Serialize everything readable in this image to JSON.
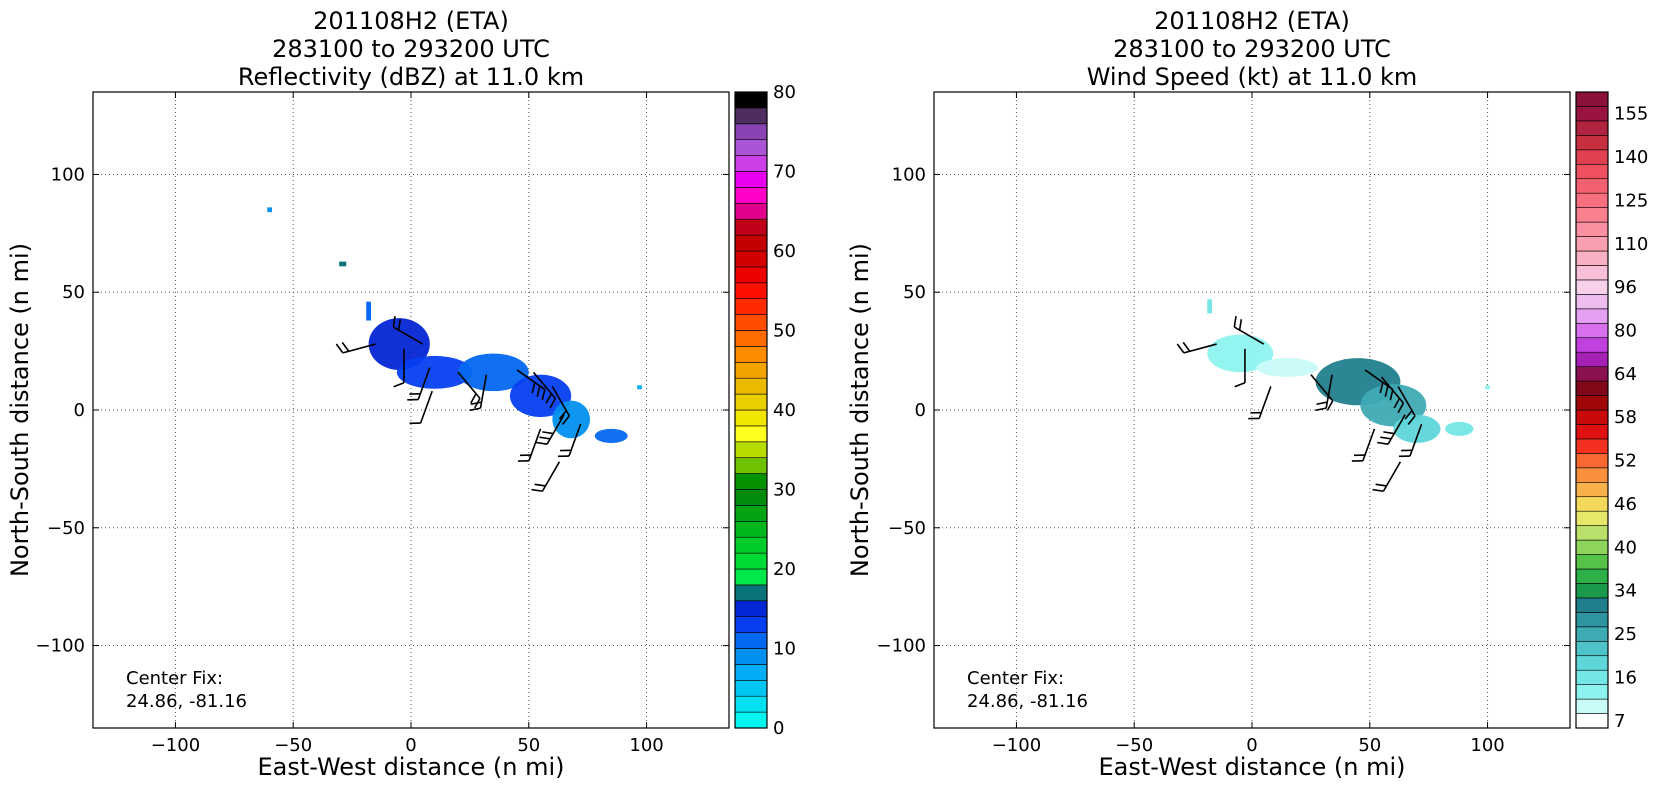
{
  "chart_data": [
    {
      "type": "heatmap",
      "title": [
        "201108H2 (ETA)",
        "283100 to 293200 UTC",
        "Reflectivity (dBZ) at 11.0 km"
      ],
      "xlabel": "East-West distance (n mi)",
      "ylabel": "North-South distance (n mi)",
      "xlim": [
        -135,
        135
      ],
      "ylim": [
        -135,
        135
      ],
      "xticks": [
        -100,
        -50,
        0,
        50,
        100
      ],
      "yticks": [
        -100,
        -50,
        0,
        50,
        100
      ],
      "grid": true,
      "annotation": [
        "Center Fix:",
        "24.86, -81.16"
      ],
      "colorbar": {
        "min": 0,
        "max": 80,
        "tick_labels": [
          "0",
          "10",
          "20",
          "30",
          "40",
          "50",
          "60",
          "70",
          "80"
        ],
        "colors": [
          "#00f5ef",
          "#00e1f0",
          "#00c6f3",
          "#01aef5",
          "#0190f0",
          "#0468f0",
          "#063ff0",
          "#0426d4",
          "#08747a",
          "#00e84a",
          "#00da35",
          "#00cc2a",
          "#00b81e",
          "#03a414",
          "#028c0b",
          "#059100",
          "#6ec200",
          "#b6dc00",
          "#ffff1f",
          "#f0e600",
          "#e8cf00",
          "#eab900",
          "#f2a300",
          "#ff8c00",
          "#ff6b00",
          "#ff4c00",
          "#ff2a00",
          "#ff0f00",
          "#ee0000",
          "#d30000",
          "#c40000",
          "#c0001a",
          "#e0008c",
          "#ff00c8",
          "#ea00f0",
          "#cc3ee6",
          "#aa54d6",
          "#8a43b2",
          "#4e2e60",
          "#000000"
        ]
      },
      "storm_blobs": [
        {
          "x": -5,
          "y": 28,
          "w": 26,
          "h": 22,
          "level": "#0426d4"
        },
        {
          "x": 10,
          "y": 16,
          "w": 32,
          "h": 14,
          "level": "#063ff0"
        },
        {
          "x": 35,
          "y": 16,
          "w": 30,
          "h": 16,
          "level": "#0468f0"
        },
        {
          "x": 55,
          "y": 6,
          "w": 26,
          "h": 18,
          "level": "#063ff0"
        },
        {
          "x": 68,
          "y": -4,
          "w": 16,
          "h": 16,
          "level": "#0190f0"
        },
        {
          "x": 85,
          "y": -11,
          "w": 14,
          "h": 6,
          "level": "#0468f0"
        },
        {
          "x": -18,
          "y": 42,
          "w": 2,
          "h": 8,
          "level": "#0468f0"
        },
        {
          "x": -29,
          "y": 62,
          "w": 3,
          "h": 2,
          "level": "#08747a"
        },
        {
          "x": -60,
          "y": 85,
          "w": 2,
          "h": 2,
          "level": "#0190f0"
        },
        {
          "x": 97,
          "y": 10,
          "w": 2,
          "h": 1,
          "level": "#01aef5"
        }
      ],
      "barbs": [
        {
          "x": -15,
          "y": 28,
          "dir": 255,
          "n": 2
        },
        {
          "x": 5,
          "y": 28,
          "dir": 300,
          "n": 2
        },
        {
          "x": -3,
          "y": 26,
          "dir": 180,
          "n": 1
        },
        {
          "x": 8,
          "y": 18,
          "dir": 200,
          "n": 2
        },
        {
          "x": 20,
          "y": 16,
          "dir": 140,
          "n": 2
        },
        {
          "x": 32,
          "y": 15,
          "dir": 190,
          "n": 2
        },
        {
          "x": 45,
          "y": 17,
          "dir": 125,
          "n": 3
        },
        {
          "x": 52,
          "y": 16,
          "dir": 140,
          "n": 2
        },
        {
          "x": 60,
          "y": 10,
          "dir": 150,
          "n": 2
        },
        {
          "x": 55,
          "y": -8,
          "dir": 200,
          "n": 2
        },
        {
          "x": 65,
          "y": -2,
          "dir": 210,
          "n": 3
        },
        {
          "x": 72,
          "y": -6,
          "dir": 200,
          "n": 2
        },
        {
          "x": 63,
          "y": -22,
          "dir": 210,
          "n": 2
        },
        {
          "x": 9,
          "y": 8,
          "dir": 200,
          "n": 1
        }
      ]
    },
    {
      "type": "heatmap",
      "title": [
        "201108H2 (ETA)",
        "283100 to 293200 UTC",
        "Wind Speed (kt) at 11.0 km"
      ],
      "xlabel": "East-West distance (n mi)",
      "ylabel": "North-South distance (n mi)",
      "xlim": [
        -135,
        135
      ],
      "ylim": [
        -135,
        135
      ],
      "xticks": [
        -100,
        -50,
        0,
        50,
        100
      ],
      "yticks": [
        -100,
        -50,
        0,
        50,
        100
      ],
      "grid": true,
      "annotation": [
        "Center Fix:",
        "24.86, -81.16"
      ],
      "colorbar": {
        "tick_labels": [
          "7",
          "16",
          "25",
          "34",
          "40",
          "46",
          "52",
          "58",
          "64",
          "80",
          "96",
          "110",
          "125",
          "140",
          "155"
        ],
        "tick_at_bin": [
          0.5,
          3.5,
          6.5,
          9.5,
          12.5,
          15.5,
          18.5,
          21.5,
          24.5,
          27.5,
          30.5,
          33.5,
          36.5,
          39.5,
          42.5
        ],
        "colors": [
          "#ffffff",
          "#c8fbf8",
          "#8ef3ef",
          "#74e6e6",
          "#5ed6d9",
          "#4ec3c9",
          "#3eaab4",
          "#2e95a3",
          "#217f8d",
          "#1a9a4a",
          "#2eb048",
          "#56c248",
          "#8cd45a",
          "#b8e06a",
          "#e6e86a",
          "#f4d85a",
          "#f8b04a",
          "#f8903c",
          "#f86830",
          "#f43020",
          "#e01010",
          "#c80a0a",
          "#a00808",
          "#800818",
          "#8a1050",
          "#a520b4",
          "#c040e0",
          "#d870ee",
          "#e6a0f2",
          "#efbcf0",
          "#f8d0ec",
          "#f8c0d8",
          "#f8b0c4",
          "#f8a0b0",
          "#fa90a0",
          "#fa8090",
          "#f87080",
          "#f46070",
          "#ee5060",
          "#e04050",
          "#c83040",
          "#b02440",
          "#9a1440",
          "#8c103c"
        ]
      },
      "storm_blobs": [
        {
          "x": -5,
          "y": 24,
          "w": 28,
          "h": 16,
          "level": "#8ef3ef"
        },
        {
          "x": 15,
          "y": 18,
          "w": 26,
          "h": 8,
          "level": "#c8fbf8"
        },
        {
          "x": 45,
          "y": 12,
          "w": 36,
          "h": 20,
          "level": "#217f8d"
        },
        {
          "x": 60,
          "y": 2,
          "w": 28,
          "h": 18,
          "level": "#3eaab4"
        },
        {
          "x": 70,
          "y": -8,
          "w": 20,
          "h": 12,
          "level": "#5ed6d9"
        },
        {
          "x": 88,
          "y": -8,
          "w": 12,
          "h": 6,
          "level": "#74e6e6"
        },
        {
          "x": -18,
          "y": 44,
          "w": 2,
          "h": 6,
          "level": "#74e6e6"
        },
        {
          "x": 100,
          "y": 10,
          "w": 2,
          "h": 1,
          "level": "#8ef3ef"
        }
      ],
      "barbs": [
        {
          "x": -15,
          "y": 28,
          "dir": 255,
          "n": 2
        },
        {
          "x": 5,
          "y": 28,
          "dir": 300,
          "n": 2
        },
        {
          "x": -3,
          "y": 26,
          "dir": 180,
          "n": 1
        },
        {
          "x": 8,
          "y": 10,
          "dir": 200,
          "n": 2
        },
        {
          "x": 25,
          "y": 15,
          "dir": 140,
          "n": 1
        },
        {
          "x": 34,
          "y": 15,
          "dir": 190,
          "n": 2
        },
        {
          "x": 48,
          "y": 17,
          "dir": 125,
          "n": 3
        },
        {
          "x": 55,
          "y": 14,
          "dir": 140,
          "n": 2
        },
        {
          "x": 62,
          "y": 10,
          "dir": 150,
          "n": 2
        },
        {
          "x": 52,
          "y": -8,
          "dir": 200,
          "n": 2
        },
        {
          "x": 65,
          "y": -2,
          "dir": 210,
          "n": 3
        },
        {
          "x": 72,
          "y": -6,
          "dir": 200,
          "n": 2
        },
        {
          "x": 63,
          "y": -22,
          "dir": 210,
          "n": 2
        }
      ]
    }
  ]
}
